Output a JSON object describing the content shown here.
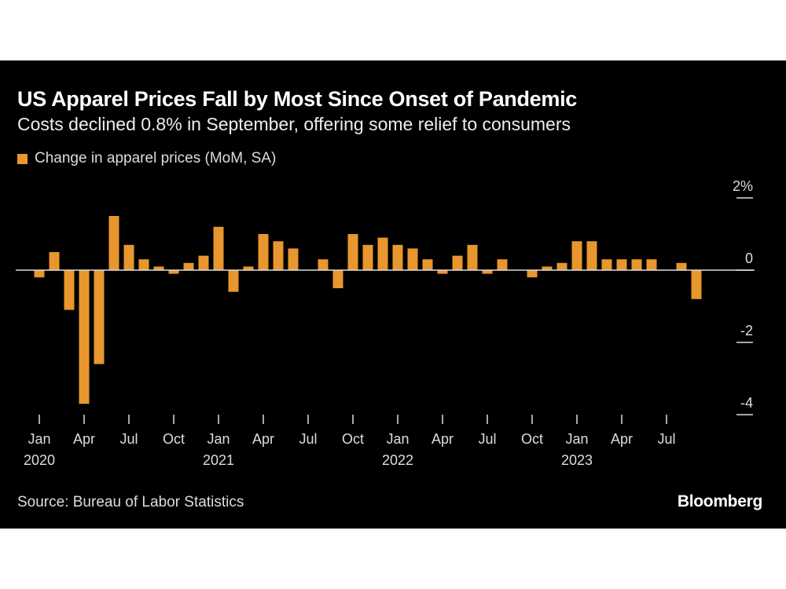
{
  "chart_data": {
    "type": "bar",
    "title": "US Apparel Prices Fall by Most Since Onset of Pandemic",
    "subtitle": "Costs declined 0.8% in September, offering some relief to consumers",
    "series": [
      {
        "name": "Change in apparel prices (MoM, SA)",
        "color": "#e8962e",
        "values": [
          -0.2,
          0.5,
          -1.1,
          -3.7,
          -2.6,
          1.5,
          0.7,
          0.3,
          0.1,
          -0.1,
          0.2,
          0.4,
          1.2,
          -0.6,
          0.1,
          1.0,
          0.8,
          0.6,
          0,
          0.3,
          -0.5,
          1.0,
          0.7,
          0.9,
          0.7,
          0.6,
          0.3,
          -0.1,
          0.4,
          0.7,
          -0.1,
          0.3,
          0,
          -0.2,
          0.1,
          0.2,
          0.8,
          0.8,
          0.3,
          0.3,
          0.3,
          0.3,
          0,
          0.2,
          -0.8
        ]
      }
    ],
    "x_start": "2020-01",
    "x_end": "2023-09",
    "x_tick_labels": [
      {
        "month": "Jan",
        "year": "2020"
      },
      {
        "month": "Apr"
      },
      {
        "month": "Jul"
      },
      {
        "month": "Oct"
      },
      {
        "month": "Jan",
        "year": "2021"
      },
      {
        "month": "Apr"
      },
      {
        "month": "Jul"
      },
      {
        "month": "Oct"
      },
      {
        "month": "Jan",
        "year": "2022"
      },
      {
        "month": "Apr"
      },
      {
        "month": "Jul"
      },
      {
        "month": "Oct"
      },
      {
        "month": "Jan",
        "year": "2023"
      },
      {
        "month": "Apr"
      },
      {
        "month": "Jul"
      }
    ],
    "y_ticks": [
      {
        "value": 2,
        "label": "2%"
      },
      {
        "value": 0,
        "label": "0"
      },
      {
        "value": -2,
        "label": "-2"
      },
      {
        "value": -4,
        "label": "-4"
      }
    ],
    "ylim": [
      -4,
      2
    ],
    "y_axis_side": "right",
    "legend_position": "top-left",
    "grid": false
  },
  "source": "Source: Bureau of Labor Statistics",
  "brand": "Bloomberg"
}
